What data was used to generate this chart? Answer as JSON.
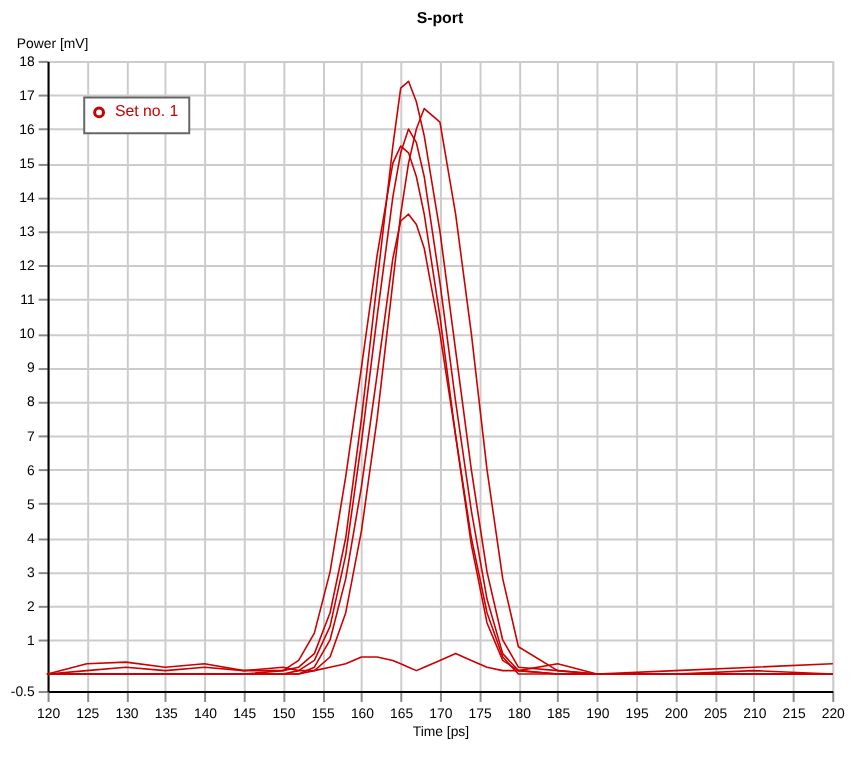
{
  "chart_data": {
    "type": "line",
    "title": "S-port",
    "xlabel": "Time [ps]",
    "ylabel": "Power [mV]",
    "x": [
      120,
      125,
      130,
      135,
      140,
      145,
      150,
      152,
      154,
      156,
      158,
      160,
      162,
      164,
      165,
      166,
      167,
      168,
      170,
      172,
      174,
      176,
      178,
      180,
      185,
      190,
      200,
      210,
      220
    ],
    "series": [
      {
        "name": "Set no. 1",
        "color": "#cc0000",
        "values": [
          0,
          0.1,
          0.2,
          0.1,
          0.2,
          0.1,
          0.1,
          0.2,
          0.6,
          1.8,
          4.0,
          7.5,
          11.5,
          15.5,
          17.2,
          17.4,
          16.8,
          15.8,
          13.0,
          9.5,
          6.0,
          3.0,
          1.0,
          0.2,
          0.1,
          0,
          0,
          0,
          0
        ]
      },
      {
        "color": "#cc0000",
        "values": [
          0,
          0,
          0,
          0,
          0,
          0,
          0,
          0,
          0.1,
          0.5,
          1.8,
          4.2,
          7.5,
          11.5,
          13.5,
          15.0,
          16.0,
          16.6,
          16.2,
          13.5,
          10,
          6.0,
          2.8,
          0.8,
          0.1,
          0,
          0,
          0.1,
          0
        ]
      },
      {
        "color": "#cc0000",
        "values": [
          0,
          0,
          0,
          0,
          0,
          0,
          0,
          0.1,
          0.4,
          1.4,
          3.5,
          6.8,
          10.5,
          14,
          15.3,
          16.0,
          15.6,
          14.6,
          11.5,
          8,
          4.8,
          2.2,
          0.6,
          0.1,
          0,
          0,
          0,
          0,
          0
        ]
      },
      {
        "color": "#cc0000",
        "values": [
          0,
          0,
          0,
          0,
          0,
          0,
          0,
          0,
          0.2,
          1.0,
          2.8,
          5.5,
          8.8,
          12.2,
          13.3,
          13.5,
          13.2,
          12.5,
          10,
          7,
          4,
          1.8,
          0.5,
          0,
          0,
          0,
          0,
          0,
          0
        ]
      },
      {
        "color": "#cc0000",
        "values": [
          0,
          0.3,
          0.35,
          0.2,
          0.3,
          0.1,
          0.2,
          0.1,
          0.1,
          0.2,
          0.3,
          0.5,
          0.5,
          0.4,
          0.3,
          0.2,
          0.1,
          0.2,
          0.4,
          0.6,
          0.4,
          0.2,
          0.1,
          0.1,
          0.3,
          0,
          0.1,
          0.2,
          0.3
        ]
      },
      {
        "color": "#cc0000",
        "values": [
          0,
          0,
          0,
          0,
          0,
          0,
          0.1,
          0.4,
          1.2,
          3.0,
          5.8,
          9.0,
          12.3,
          15.0,
          15.5,
          15.3,
          14.6,
          13.5,
          10.5,
          7.0,
          3.8,
          1.5,
          0.4,
          0.1,
          0,
          0,
          0,
          0,
          0
        ]
      }
    ],
    "xlim": [
      120,
      220
    ],
    "xticks": [
      120,
      125,
      130,
      135,
      140,
      145,
      150,
      155,
      160,
      165,
      170,
      175,
      180,
      185,
      190,
      195,
      200,
      205,
      210,
      215,
      220
    ],
    "ylim": [
      -0.5,
      18
    ],
    "yticks": [
      -0.5,
      1,
      2,
      3,
      4,
      5,
      6,
      7,
      8,
      9,
      10,
      11,
      12,
      13,
      14,
      15,
      16,
      17,
      18
    ],
    "grid": true,
    "legend": "top left",
    "marker": "none",
    "line_style": "solid"
  }
}
